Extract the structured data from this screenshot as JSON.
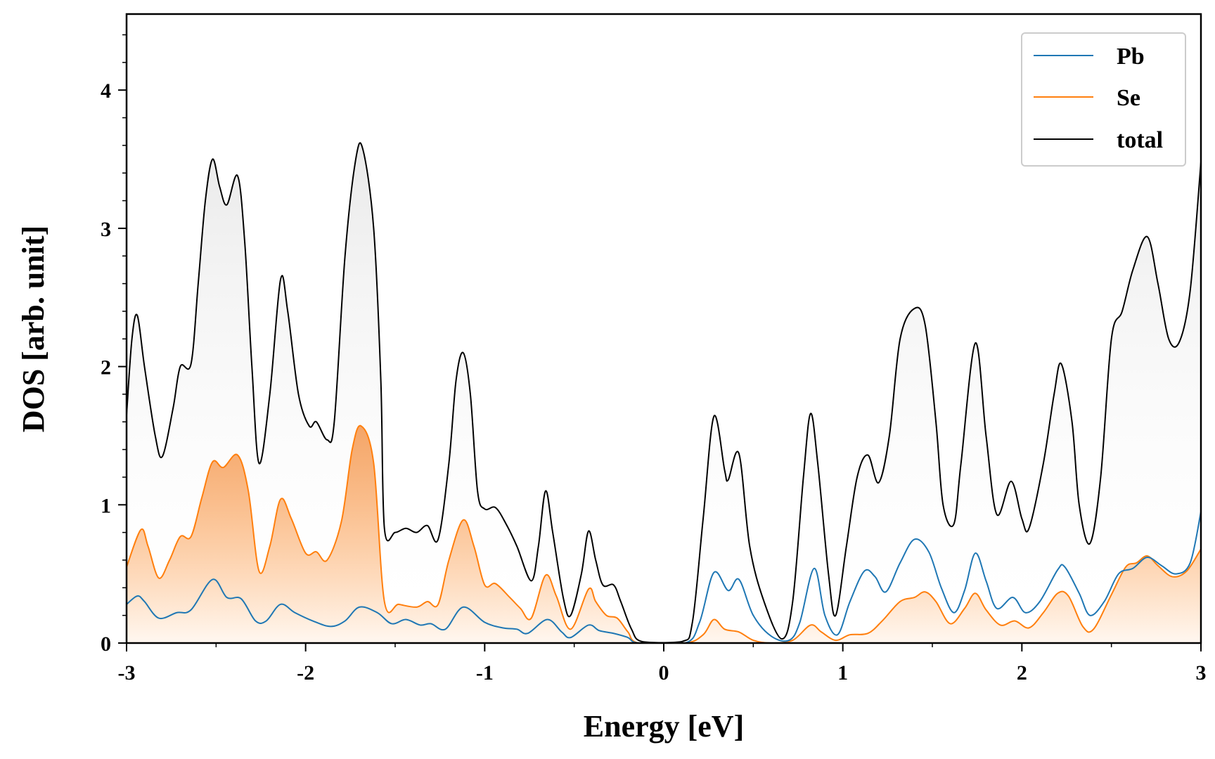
{
  "chart_data": {
    "type": "line",
    "xlabel": "Energy [eV]",
    "ylabel": "DOS [arb. unit]",
    "xlim": [
      -3,
      3
    ],
    "ylim": [
      0,
      4.55
    ],
    "x_ticks": [
      -3,
      -2,
      -1,
      0,
      1,
      2,
      3
    ],
    "x_tick_labels": [
      "-3",
      "-2",
      "-1",
      "0",
      "1",
      "2",
      "3"
    ],
    "y_ticks": [
      0,
      1,
      2,
      3,
      4
    ],
    "y_tick_labels": [
      "0",
      "1",
      "2",
      "3",
      "4"
    ],
    "grid": false,
    "legend_position": "top-right",
    "fill_under_curves": true,
    "series": [
      {
        "name": "Pb",
        "color": "#1f77b4",
        "fill": false,
        "points": [
          [
            -3.0,
            0.28
          ],
          [
            -2.94,
            0.34
          ],
          [
            -2.9,
            0.3
          ],
          [
            -2.82,
            0.18
          ],
          [
            -2.72,
            0.22
          ],
          [
            -2.64,
            0.24
          ],
          [
            -2.52,
            0.46
          ],
          [
            -2.44,
            0.33
          ],
          [
            -2.36,
            0.32
          ],
          [
            -2.28,
            0.16
          ],
          [
            -2.22,
            0.16
          ],
          [
            -2.14,
            0.28
          ],
          [
            -2.06,
            0.22
          ],
          [
            -1.96,
            0.16
          ],
          [
            -1.86,
            0.12
          ],
          [
            -1.78,
            0.16
          ],
          [
            -1.7,
            0.26
          ],
          [
            -1.6,
            0.22
          ],
          [
            -1.52,
            0.14
          ],
          [
            -1.44,
            0.17
          ],
          [
            -1.36,
            0.13
          ],
          [
            -1.3,
            0.14
          ],
          [
            -1.22,
            0.1
          ],
          [
            -1.12,
            0.26
          ],
          [
            -1.0,
            0.15
          ],
          [
            -0.9,
            0.11
          ],
          [
            -0.82,
            0.1
          ],
          [
            -0.76,
            0.07
          ],
          [
            -0.65,
            0.17
          ],
          [
            -0.57,
            0.08
          ],
          [
            -0.52,
            0.04
          ],
          [
            -0.42,
            0.13
          ],
          [
            -0.36,
            0.09
          ],
          [
            -0.28,
            0.07
          ],
          [
            -0.2,
            0.04
          ],
          [
            -0.14,
            0.0
          ],
          [
            0.12,
            0.0
          ],
          [
            0.2,
            0.15
          ],
          [
            0.28,
            0.51
          ],
          [
            0.36,
            0.38
          ],
          [
            0.42,
            0.46
          ],
          [
            0.5,
            0.2
          ],
          [
            0.6,
            0.05
          ],
          [
            0.7,
            0.02
          ],
          [
            0.76,
            0.15
          ],
          [
            0.84,
            0.54
          ],
          [
            0.9,
            0.2
          ],
          [
            0.97,
            0.06
          ],
          [
            1.04,
            0.3
          ],
          [
            1.12,
            0.52
          ],
          [
            1.18,
            0.48
          ],
          [
            1.24,
            0.37
          ],
          [
            1.32,
            0.58
          ],
          [
            1.4,
            0.75
          ],
          [
            1.48,
            0.66
          ],
          [
            1.55,
            0.4
          ],
          [
            1.62,
            0.22
          ],
          [
            1.68,
            0.38
          ],
          [
            1.74,
            0.65
          ],
          [
            1.8,
            0.45
          ],
          [
            1.86,
            0.25
          ],
          [
            1.95,
            0.33
          ],
          [
            2.02,
            0.22
          ],
          [
            2.1,
            0.3
          ],
          [
            2.2,
            0.53
          ],
          [
            2.24,
            0.55
          ],
          [
            2.32,
            0.36
          ],
          [
            2.38,
            0.2
          ],
          [
            2.46,
            0.3
          ],
          [
            2.54,
            0.5
          ],
          [
            2.62,
            0.54
          ],
          [
            2.7,
            0.62
          ],
          [
            2.78,
            0.56
          ],
          [
            2.86,
            0.5
          ],
          [
            2.94,
            0.58
          ],
          [
            3.0,
            0.95
          ]
        ]
      },
      {
        "name": "Se",
        "color": "#ff7f0e",
        "fill": true,
        "points": [
          [
            -3.0,
            0.55
          ],
          [
            -2.92,
            0.82
          ],
          [
            -2.88,
            0.7
          ],
          [
            -2.82,
            0.47
          ],
          [
            -2.76,
            0.6
          ],
          [
            -2.7,
            0.77
          ],
          [
            -2.64,
            0.77
          ],
          [
            -2.58,
            1.05
          ],
          [
            -2.52,
            1.31
          ],
          [
            -2.46,
            1.27
          ],
          [
            -2.38,
            1.36
          ],
          [
            -2.32,
            1.1
          ],
          [
            -2.26,
            0.52
          ],
          [
            -2.2,
            0.7
          ],
          [
            -2.14,
            1.04
          ],
          [
            -2.08,
            0.9
          ],
          [
            -2.0,
            0.65
          ],
          [
            -1.94,
            0.66
          ],
          [
            -1.88,
            0.6
          ],
          [
            -1.8,
            0.88
          ],
          [
            -1.74,
            1.4
          ],
          [
            -1.69,
            1.57
          ],
          [
            -1.62,
            1.3
          ],
          [
            -1.56,
            0.3
          ],
          [
            -1.48,
            0.28
          ],
          [
            -1.38,
            0.26
          ],
          [
            -1.32,
            0.3
          ],
          [
            -1.26,
            0.28
          ],
          [
            -1.2,
            0.6
          ],
          [
            -1.12,
            0.89
          ],
          [
            -1.06,
            0.7
          ],
          [
            -1.0,
            0.42
          ],
          [
            -0.94,
            0.43
          ],
          [
            -0.86,
            0.33
          ],
          [
            -0.8,
            0.25
          ],
          [
            -0.74,
            0.18
          ],
          [
            -0.66,
            0.49
          ],
          [
            -0.6,
            0.34
          ],
          [
            -0.52,
            0.1
          ],
          [
            -0.42,
            0.39
          ],
          [
            -0.38,
            0.3
          ],
          [
            -0.32,
            0.2
          ],
          [
            -0.26,
            0.18
          ],
          [
            -0.2,
            0.08
          ],
          [
            -0.14,
            0.0
          ],
          [
            0.12,
            0.0
          ],
          [
            0.22,
            0.06
          ],
          [
            0.28,
            0.17
          ],
          [
            0.34,
            0.1
          ],
          [
            0.42,
            0.08
          ],
          [
            0.5,
            0.02
          ],
          [
            0.6,
            0.0
          ],
          [
            0.72,
            0.02
          ],
          [
            0.82,
            0.13
          ],
          [
            0.88,
            0.08
          ],
          [
            0.96,
            0.02
          ],
          [
            1.04,
            0.06
          ],
          [
            1.14,
            0.07
          ],
          [
            1.22,
            0.16
          ],
          [
            1.32,
            0.3
          ],
          [
            1.4,
            0.33
          ],
          [
            1.46,
            0.37
          ],
          [
            1.52,
            0.3
          ],
          [
            1.6,
            0.14
          ],
          [
            1.68,
            0.25
          ],
          [
            1.74,
            0.36
          ],
          [
            1.8,
            0.24
          ],
          [
            1.88,
            0.13
          ],
          [
            1.96,
            0.16
          ],
          [
            2.04,
            0.11
          ],
          [
            2.12,
            0.22
          ],
          [
            2.2,
            0.36
          ],
          [
            2.26,
            0.34
          ],
          [
            2.34,
            0.12
          ],
          [
            2.4,
            0.1
          ],
          [
            2.5,
            0.35
          ],
          [
            2.58,
            0.55
          ],
          [
            2.64,
            0.58
          ],
          [
            2.7,
            0.63
          ],
          [
            2.76,
            0.56
          ],
          [
            2.84,
            0.48
          ],
          [
            2.92,
            0.52
          ],
          [
            3.0,
            0.68
          ]
        ]
      },
      {
        "name": "total",
        "color": "#000000",
        "fill": true,
        "points": [
          [
            -3.0,
            1.65
          ],
          [
            -2.97,
            2.2
          ],
          [
            -2.94,
            2.37
          ],
          [
            -2.9,
            2.0
          ],
          [
            -2.84,
            1.5
          ],
          [
            -2.8,
            1.35
          ],
          [
            -2.74,
            1.7
          ],
          [
            -2.7,
            2.0
          ],
          [
            -2.64,
            2.02
          ],
          [
            -2.6,
            2.6
          ],
          [
            -2.56,
            3.2
          ],
          [
            -2.52,
            3.5
          ],
          [
            -2.48,
            3.3
          ],
          [
            -2.44,
            3.17
          ],
          [
            -2.38,
            3.38
          ],
          [
            -2.34,
            2.9
          ],
          [
            -2.3,
            2.0
          ],
          [
            -2.26,
            1.3
          ],
          [
            -2.2,
            1.8
          ],
          [
            -2.14,
            2.63
          ],
          [
            -2.1,
            2.4
          ],
          [
            -2.04,
            1.8
          ],
          [
            -1.98,
            1.57
          ],
          [
            -1.94,
            1.6
          ],
          [
            -1.88,
            1.47
          ],
          [
            -1.84,
            1.6
          ],
          [
            -1.78,
            2.8
          ],
          [
            -1.72,
            3.5
          ],
          [
            -1.68,
            3.57
          ],
          [
            -1.62,
            3.0
          ],
          [
            -1.58,
            1.9
          ],
          [
            -1.56,
            0.83
          ],
          [
            -1.5,
            0.8
          ],
          [
            -1.44,
            0.83
          ],
          [
            -1.38,
            0.8
          ],
          [
            -1.32,
            0.85
          ],
          [
            -1.26,
            0.75
          ],
          [
            -1.2,
            1.3
          ],
          [
            -1.16,
            1.9
          ],
          [
            -1.12,
            2.1
          ],
          [
            -1.08,
            1.8
          ],
          [
            -1.04,
            1.1
          ],
          [
            -1.0,
            0.97
          ],
          [
            -0.94,
            0.98
          ],
          [
            -0.88,
            0.86
          ],
          [
            -0.82,
            0.7
          ],
          [
            -0.74,
            0.45
          ],
          [
            -0.7,
            0.7
          ],
          [
            -0.66,
            1.1
          ],
          [
            -0.62,
            0.8
          ],
          [
            -0.56,
            0.32
          ],
          [
            -0.52,
            0.2
          ],
          [
            -0.46,
            0.5
          ],
          [
            -0.42,
            0.81
          ],
          [
            -0.38,
            0.6
          ],
          [
            -0.34,
            0.42
          ],
          [
            -0.28,
            0.42
          ],
          [
            -0.24,
            0.3
          ],
          [
            -0.18,
            0.1
          ],
          [
            -0.12,
            0.01
          ],
          [
            0.1,
            0.01
          ],
          [
            0.16,
            0.15
          ],
          [
            0.22,
            0.9
          ],
          [
            0.28,
            1.64
          ],
          [
            0.34,
            1.25
          ],
          [
            0.36,
            1.18
          ],
          [
            0.42,
            1.37
          ],
          [
            0.48,
            0.7
          ],
          [
            0.56,
            0.3
          ],
          [
            0.66,
            0.03
          ],
          [
            0.72,
            0.3
          ],
          [
            0.78,
            1.2
          ],
          [
            0.82,
            1.66
          ],
          [
            0.86,
            1.3
          ],
          [
            0.92,
            0.5
          ],
          [
            0.96,
            0.2
          ],
          [
            1.02,
            0.7
          ],
          [
            1.08,
            1.2
          ],
          [
            1.14,
            1.36
          ],
          [
            1.2,
            1.16
          ],
          [
            1.26,
            1.5
          ],
          [
            1.32,
            2.2
          ],
          [
            1.4,
            2.42
          ],
          [
            1.46,
            2.3
          ],
          [
            1.52,
            1.6
          ],
          [
            1.56,
            1.0
          ],
          [
            1.62,
            0.86
          ],
          [
            1.66,
            1.3
          ],
          [
            1.74,
            2.17
          ],
          [
            1.8,
            1.5
          ],
          [
            1.86,
            0.93
          ],
          [
            1.94,
            1.17
          ],
          [
            2.0,
            0.9
          ],
          [
            2.04,
            0.83
          ],
          [
            2.12,
            1.3
          ],
          [
            2.18,
            1.8
          ],
          [
            2.22,
            2.02
          ],
          [
            2.28,
            1.6
          ],
          [
            2.32,
            1.0
          ],
          [
            2.38,
            0.72
          ],
          [
            2.44,
            1.2
          ],
          [
            2.5,
            2.2
          ],
          [
            2.56,
            2.4
          ],
          [
            2.62,
            2.7
          ],
          [
            2.7,
            2.94
          ],
          [
            2.76,
            2.6
          ],
          [
            2.82,
            2.2
          ],
          [
            2.88,
            2.18
          ],
          [
            2.94,
            2.55
          ],
          [
            3.0,
            3.48
          ]
        ]
      }
    ]
  }
}
